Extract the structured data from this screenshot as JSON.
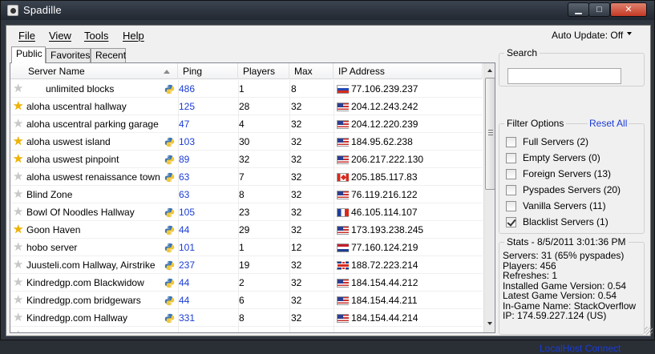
{
  "window": {
    "title": "Spadille",
    "controls": {
      "minimize": "▁",
      "maximize": "□",
      "close": "✕"
    }
  },
  "menu": {
    "items": [
      "File",
      "View",
      "Tools",
      "Help"
    ],
    "auto_update": "Auto Update: Off"
  },
  "tabs": [
    "Public",
    "Favorites",
    "Recent"
  ],
  "table": {
    "columns": [
      "Server Name",
      "Ping",
      "Players",
      "Max",
      "IP Address"
    ],
    "rows": [
      {
        "star": false,
        "name": "unlimited blocks",
        "indent": true,
        "python": true,
        "ping": "486",
        "players": "1",
        "max": "8",
        "flag": "ru",
        "ip": "77.106.239.237"
      },
      {
        "star": true,
        "name": "aloha uscentral hallway",
        "indent": false,
        "python": false,
        "ping": "125",
        "players": "28",
        "max": "32",
        "flag": "us",
        "ip": "204.12.243.242"
      },
      {
        "star": false,
        "name": "aloha uscentral parking garage",
        "indent": false,
        "python": false,
        "ping": "47",
        "players": "4",
        "max": "32",
        "flag": "us",
        "ip": "204.12.220.239"
      },
      {
        "star": true,
        "name": "aloha uswest island",
        "indent": false,
        "python": true,
        "ping": "103",
        "players": "30",
        "max": "32",
        "flag": "us",
        "ip": "184.95.62.238"
      },
      {
        "star": true,
        "name": "aloha uswest pinpoint",
        "indent": false,
        "python": true,
        "ping": "89",
        "players": "32",
        "max": "32",
        "flag": "us",
        "ip": "206.217.222.130"
      },
      {
        "star": false,
        "name": "aloha uswest renaissance town",
        "indent": false,
        "python": true,
        "ping": "63",
        "players": "7",
        "max": "32",
        "flag": "ca",
        "ip": "205.185.117.83"
      },
      {
        "star": false,
        "name": "Blind Zone",
        "indent": false,
        "python": false,
        "ping": "63",
        "players": "8",
        "max": "32",
        "flag": "us",
        "ip": "76.119.216.122"
      },
      {
        "star": false,
        "name": "Bowl Of Noodles   Hallway",
        "indent": false,
        "python": true,
        "ping": "105",
        "players": "23",
        "max": "32",
        "flag": "fr",
        "ip": "46.105.114.107"
      },
      {
        "star": true,
        "name": "Goon Haven",
        "indent": false,
        "python": true,
        "ping": "44",
        "players": "29",
        "max": "32",
        "flag": "us",
        "ip": "173.193.238.245"
      },
      {
        "star": false,
        "name": "hobo server",
        "indent": false,
        "python": true,
        "ping": "101",
        "players": "1",
        "max": "12",
        "flag": "nl",
        "ip": "77.160.124.219"
      },
      {
        "star": false,
        "name": "Juusteli.com Hallway, Airstrike",
        "indent": false,
        "python": true,
        "ping": "237",
        "players": "19",
        "max": "32",
        "flag": "gb",
        "ip": "188.72.223.214"
      },
      {
        "star": false,
        "name": "Kindredgp.com Blackwidow",
        "indent": false,
        "python": true,
        "ping": "44",
        "players": "2",
        "max": "32",
        "flag": "us",
        "ip": "184.154.44.212"
      },
      {
        "star": false,
        "name": "Kindredgp.com bridgewars",
        "indent": false,
        "python": true,
        "ping": "44",
        "players": "6",
        "max": "32",
        "flag": "us",
        "ip": "184.154.44.211"
      },
      {
        "star": false,
        "name": "Kindredgp.com Hallway",
        "indent": false,
        "python": true,
        "ping": "331",
        "players": "8",
        "max": "32",
        "flag": "us",
        "ip": "184.154.44.214"
      },
      {
        "star": false,
        "name": "",
        "indent": false,
        "python": false,
        "ping": "",
        "players": "",
        "max": "",
        "flag": "",
        "ip": ""
      }
    ]
  },
  "search": {
    "title": "Search",
    "value": "",
    "placeholder": ""
  },
  "filters": {
    "title": "Filter Options",
    "reset": "Reset All",
    "items": [
      {
        "label": "Full Servers (2)",
        "checked": false
      },
      {
        "label": "Empty Servers (0)",
        "checked": false
      },
      {
        "label": "Foreign Servers (13)",
        "checked": false
      },
      {
        "label": "Pyspades Servers (20)",
        "checked": false
      },
      {
        "label": "Vanilla Servers (11)",
        "checked": false
      },
      {
        "label": "Blacklist Servers (1)",
        "checked": true
      }
    ]
  },
  "stats": {
    "title": "Stats - 8/5/2011 3:01:36 PM",
    "lines": [
      "Servers: 31 (65% pyspades)",
      "Players: 456",
      "Refreshes: 1",
      "Installed Game Version: 0.54",
      "Latest Game Version: 0.54",
      "In-Game Name: StackOverflow",
      "IP: 174.59.227.124 (US)"
    ]
  },
  "footer": {
    "link": "LocalHost Connect"
  },
  "colors": {
    "link": "#1a3cd6",
    "star_on": "#f0b400",
    "titlebar": "#2f3640"
  }
}
